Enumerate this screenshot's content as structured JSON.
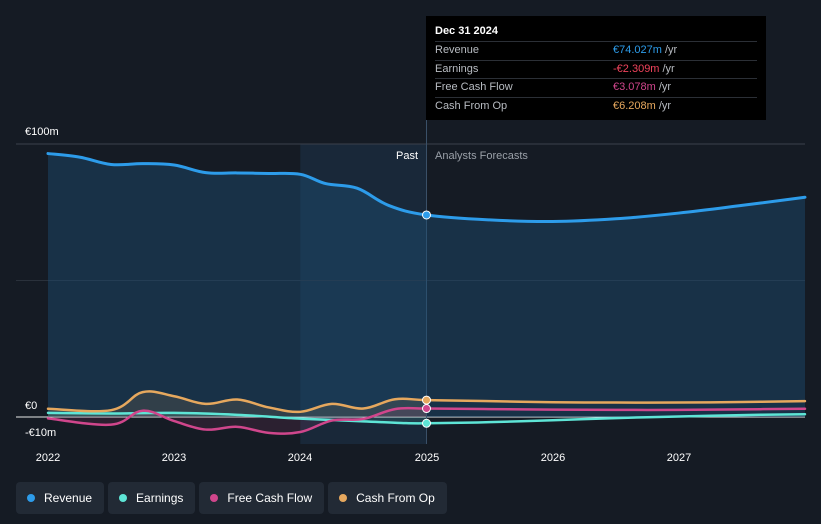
{
  "chart_data": {
    "type": "area",
    "title": "",
    "y_labels": [
      "€100m",
      "€0",
      "-€10m"
    ],
    "ylim": [
      -10,
      100
    ],
    "xlim": [
      2022.0,
      2028.0
    ],
    "x_ticks": [
      {
        "value": 2022,
        "label": "2022"
      },
      {
        "value": 2023,
        "label": "2023"
      },
      {
        "value": 2024,
        "label": "2024"
      },
      {
        "value": 2025,
        "label": "2025"
      },
      {
        "value": 2026,
        "label": "2026"
      },
      {
        "value": 2027,
        "label": "2027"
      }
    ],
    "highlight_start": 2024.0,
    "divider_x": 2025.0,
    "past_label": "Past",
    "forecast_label": "Analysts Forecasts",
    "series": [
      {
        "name": "Revenue",
        "color": "#2d9cea",
        "points": [
          [
            2022.0,
            96.5
          ],
          [
            2022.25,
            95.2
          ],
          [
            2022.5,
            92.5
          ],
          [
            2022.75,
            92.8
          ],
          [
            2023.0,
            92.3
          ],
          [
            2023.25,
            89.5
          ],
          [
            2023.5,
            89.4
          ],
          [
            2023.75,
            89.2
          ],
          [
            2024.0,
            88.9
          ],
          [
            2024.2,
            85.5
          ],
          [
            2024.45,
            83.8
          ],
          [
            2024.7,
            77.5
          ],
          [
            2025.0,
            74.0
          ],
          [
            2025.5,
            72.2
          ],
          [
            2026.0,
            71.6
          ],
          [
            2026.5,
            72.6
          ],
          [
            2027.0,
            74.7
          ],
          [
            2027.5,
            77.5
          ],
          [
            2028.0,
            80.5
          ]
        ]
      },
      {
        "name": "Earnings",
        "color": "#5ee5d6",
        "points": [
          [
            2022.0,
            1.5
          ],
          [
            2022.5,
            1.3
          ],
          [
            2023.0,
            1.5
          ],
          [
            2023.5,
            0.8
          ],
          [
            2024.0,
            -0.6
          ],
          [
            2024.5,
            -1.6
          ],
          [
            2024.8,
            -2.2
          ],
          [
            2025.0,
            -2.3
          ],
          [
            2025.5,
            -1.9
          ],
          [
            2026.0,
            -1.2
          ],
          [
            2026.5,
            -0.4
          ],
          [
            2027.0,
            0.2
          ],
          [
            2027.5,
            0.7
          ],
          [
            2028.0,
            1.0
          ]
        ]
      },
      {
        "name": "Free Cash Flow",
        "color": "#d0468c",
        "points": [
          [
            2022.0,
            -0.5
          ],
          [
            2022.5,
            -2.8
          ],
          [
            2022.75,
            2.3
          ],
          [
            2023.0,
            -1.5
          ],
          [
            2023.25,
            -4.6
          ],
          [
            2023.5,
            -3.6
          ],
          [
            2023.75,
            -5.8
          ],
          [
            2024.0,
            -5.5
          ],
          [
            2024.25,
            -1.3
          ],
          [
            2024.5,
            -0.7
          ],
          [
            2024.75,
            2.9
          ],
          [
            2025.0,
            3.1
          ],
          [
            2025.5,
            2.9
          ],
          [
            2026.0,
            2.7
          ],
          [
            2026.5,
            2.6
          ],
          [
            2027.0,
            2.6
          ],
          [
            2027.5,
            2.8
          ],
          [
            2028.0,
            3.0
          ]
        ]
      },
      {
        "name": "Cash From Op",
        "color": "#e6a85e",
        "points": [
          [
            2022.0,
            3.0
          ],
          [
            2022.5,
            2.5
          ],
          [
            2022.75,
            9.1
          ],
          [
            2023.0,
            7.6
          ],
          [
            2023.25,
            4.8
          ],
          [
            2023.5,
            6.4
          ],
          [
            2023.75,
            3.5
          ],
          [
            2024.0,
            1.9
          ],
          [
            2024.25,
            4.8
          ],
          [
            2024.5,
            3.1
          ],
          [
            2024.75,
            6.5
          ],
          [
            2025.0,
            6.2
          ],
          [
            2025.5,
            5.8
          ],
          [
            2026.0,
            5.4
          ],
          [
            2026.5,
            5.3
          ],
          [
            2027.0,
            5.3
          ],
          [
            2027.5,
            5.5
          ],
          [
            2028.0,
            5.8
          ]
        ]
      }
    ]
  },
  "tooltip": {
    "date": "Dec 31 2024",
    "rows": [
      {
        "label": "Revenue",
        "value": "€74.027m",
        "unit": "/yr",
        "color": "#2d9cea"
      },
      {
        "label": "Earnings",
        "value": "-€2.309m",
        "unit": "/yr",
        "color": "#f0435c"
      },
      {
        "label": "Free Cash Flow",
        "value": "€3.078m",
        "unit": "/yr",
        "color": "#d0468c"
      },
      {
        "label": "Cash From Op",
        "value": "€6.208m",
        "unit": "/yr",
        "color": "#e6a85e"
      }
    ]
  },
  "legend": [
    {
      "label": "Revenue",
      "color": "#2d9cea"
    },
    {
      "label": "Earnings",
      "color": "#5ee5d6"
    },
    {
      "label": "Free Cash Flow",
      "color": "#d0468c"
    },
    {
      "label": "Cash From Op",
      "color": "#e6a85e"
    }
  ]
}
